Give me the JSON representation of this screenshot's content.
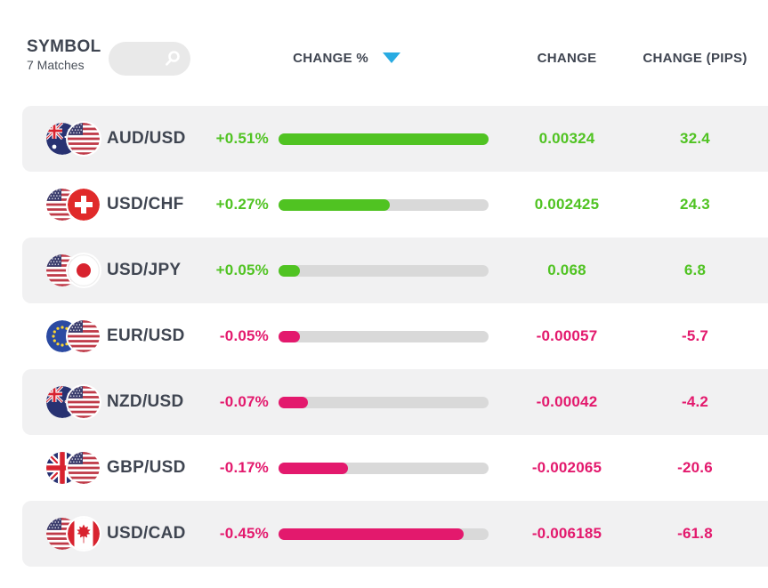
{
  "title": "Forex pairs percent-change table",
  "colors": {
    "green": "#50c322",
    "pink": "#e3196d",
    "track": "#d9d9d9",
    "row_alt": "#f1f1f2",
    "sort_accent": "#29abe2",
    "ink": "#3f4551",
    "pill": "#e9e9e9"
  },
  "header": {
    "symbol_label": "SYMBOL",
    "matches_label": "7 Matches",
    "search_placeholder": "",
    "columns": {
      "change_pct": "CHANGE %",
      "change": "CHANGE",
      "change_pips": "CHANGE (PIPS)"
    },
    "sort": {
      "column": "CHANGE %",
      "direction": "desc"
    }
  },
  "rows": [
    {
      "pair": "AUD/USD",
      "base_flag": "australia-flag",
      "quote_flag": "usa-flag",
      "change_pct": "+0.51%",
      "change": "0.00324",
      "change_pips": "32.4",
      "direction": "up",
      "bar_fill_pct": 100
    },
    {
      "pair": "USD/CHF",
      "base_flag": "usa-flag",
      "quote_flag": "switzerland-flag",
      "change_pct": "+0.27%",
      "change": "0.002425",
      "change_pips": "24.3",
      "direction": "up",
      "bar_fill_pct": 53
    },
    {
      "pair": "USD/JPY",
      "base_flag": "usa-flag",
      "quote_flag": "japan-flag",
      "change_pct": "+0.05%",
      "change": "0.068",
      "change_pips": "6.8",
      "direction": "up",
      "bar_fill_pct": 10
    },
    {
      "pair": "EUR/USD",
      "base_flag": "eu-flag",
      "quote_flag": "usa-flag",
      "change_pct": "-0.05%",
      "change": "-0.00057",
      "change_pips": "-5.7",
      "direction": "down",
      "bar_fill_pct": 10
    },
    {
      "pair": "NZD/USD",
      "base_flag": "new-zealand-flag",
      "quote_flag": "usa-flag",
      "change_pct": "-0.07%",
      "change": "-0.00042",
      "change_pips": "-4.2",
      "direction": "down",
      "bar_fill_pct": 14
    },
    {
      "pair": "GBP/USD",
      "base_flag": "uk-flag",
      "quote_flag": "usa-flag",
      "change_pct": "-0.17%",
      "change": "-0.002065",
      "change_pips": "-20.6",
      "direction": "down",
      "bar_fill_pct": 33
    },
    {
      "pair": "USD/CAD",
      "base_flag": "usa-flag",
      "quote_flag": "canada-flag",
      "change_pct": "-0.45%",
      "change": "-0.006185",
      "change_pips": "-61.8",
      "direction": "down",
      "bar_fill_pct": 88
    }
  ]
}
